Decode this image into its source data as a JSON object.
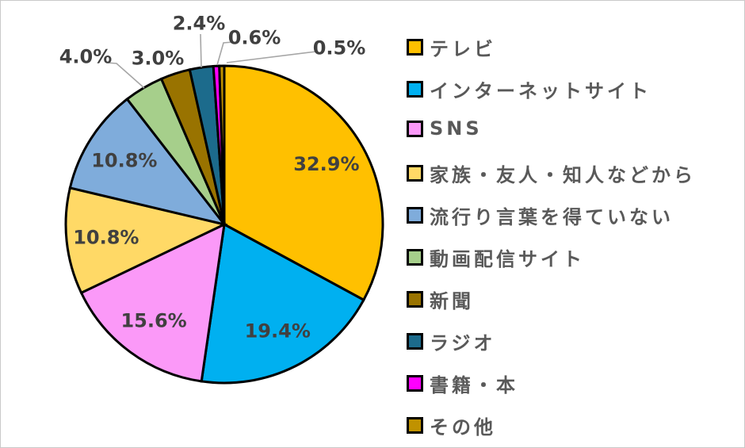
{
  "chart_data": {
    "type": "pie",
    "title": "",
    "legend_position": "right",
    "direction": "clockwise",
    "start_angle_deg": 0,
    "categories": [
      "テレビ",
      "インターネットサイト",
      "SNS",
      "家族・友人・知人などから",
      "流行り言葉を得ていない",
      "動画配信サイト",
      "新聞",
      "ラジオ",
      "書籍・本",
      "その他"
    ],
    "values": [
      32.9,
      19.4,
      15.6,
      10.8,
      10.8,
      4.0,
      3.0,
      2.4,
      0.6,
      0.5
    ],
    "labels": [
      "32.9%",
      "19.4%",
      "15.6%",
      "10.8%",
      "10.8%",
      "4.0%",
      "3.0%",
      "2.4%",
      "0.6%",
      "0.5%"
    ],
    "colors": [
      "#FFC000",
      "#00B0F0",
      "#FB99F8",
      "#FFD966",
      "#7FACDB",
      "#A6CF8B",
      "#997300",
      "#1C6B8C",
      "#FF00FF",
      "#C09200"
    ],
    "slice_border_color": "#000000",
    "data_label_color": "#404040",
    "legend_text_color": "#595959",
    "leader_line_color": "#A6A6A6",
    "background_color": "#FFFFFF"
  }
}
